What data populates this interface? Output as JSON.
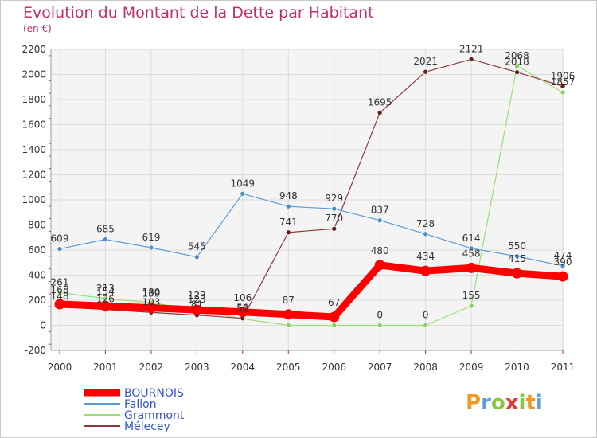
{
  "title": "Evolution du Montant de la Dette par Habitant",
  "subtitle": "(en €)",
  "logo": {
    "text": "Proxiti",
    "letters": [
      {
        "ch": "P",
        "color": "#f29a1f"
      },
      {
        "ch": "r",
        "color": "#5aa0d8"
      },
      {
        "ch": "o",
        "color": "#8cc63e"
      },
      {
        "ch": "x",
        "color": "#e53935"
      },
      {
        "ch": "i",
        "color": "#8cc63e"
      },
      {
        "ch": "t",
        "color": "#f29a1f"
      },
      {
        "ch": "i",
        "color": "#5aa0d8"
      }
    ]
  },
  "chart_data": {
    "type": "line",
    "x": [
      "2000",
      "2001",
      "2002",
      "2003",
      "2004",
      "2005",
      "2006",
      "2007",
      "2008",
      "2009",
      "2010",
      "2011"
    ],
    "ylim": [
      -200,
      2200
    ],
    "yticks": [
      -200,
      0,
      200,
      400,
      600,
      800,
      1000,
      1200,
      1400,
      1600,
      1800,
      2000,
      2200
    ],
    "grid": true,
    "legend_position": "bottom-left",
    "series": [
      {
        "name": "Fallon",
        "color": "#5b9bd5",
        "marker": "#4a90c8",
        "width": 1.2,
        "values": [
          609,
          685,
          619,
          545,
          1049,
          948,
          929,
          837,
          728,
          614,
          550,
          474
        ]
      },
      {
        "name": "Grammont",
        "color": "#99dd77",
        "marker": "#88d060",
        "width": 1.2,
        "values": [
          261,
          213,
          180,
          123,
          52,
          0,
          0,
          0,
          0,
          155,
          2068,
          1857
        ]
      },
      {
        "name": "Mélecey",
        "color": "#8a3a3a",
        "marker": "#661e1e",
        "width": 1.2,
        "values": [
          148,
          126,
          103,
          81,
          56,
          741,
          770,
          1695,
          2021,
          2121,
          2018,
          1906
        ]
      },
      {
        "name": "BOURNOIS",
        "color": "#ff0000",
        "marker": "#ff0000",
        "width": 9,
        "values": [
          168,
          154,
          139,
          123,
          106,
          87,
          67,
          480,
          434,
          458,
          415,
          390
        ]
      }
    ],
    "data_labels": [
      {
        "series": 0,
        "labels": [
          "609",
          "685",
          "619",
          "545",
          "1049",
          "948",
          "929",
          "837",
          "728",
          "614",
          "550",
          "474"
        ]
      },
      {
        "series": 1,
        "labels": [
          "261",
          "213",
          "180",
          "123",
          "52",
          "",
          "",
          "0",
          "0",
          "155",
          "2068",
          "1857"
        ]
      },
      {
        "series": 2,
        "labels": [
          "148",
          "126",
          "103",
          "81",
          "56",
          "741",
          "770",
          "1695",
          "2021",
          "2121",
          "2018",
          "1906"
        ]
      },
      {
        "series": 3,
        "labels": [
          "168",
          "154",
          "139",
          "123",
          "106",
          "87",
          "67",
          "480",
          "434",
          "458",
          "415",
          "390"
        ]
      }
    ],
    "legend": [
      {
        "name": "BOURNOIS",
        "series": 3
      },
      {
        "name": "Fallon",
        "series": 0
      },
      {
        "name": "Grammont",
        "series": 1
      },
      {
        "name": "Mélecey",
        "series": 2
      }
    ]
  }
}
